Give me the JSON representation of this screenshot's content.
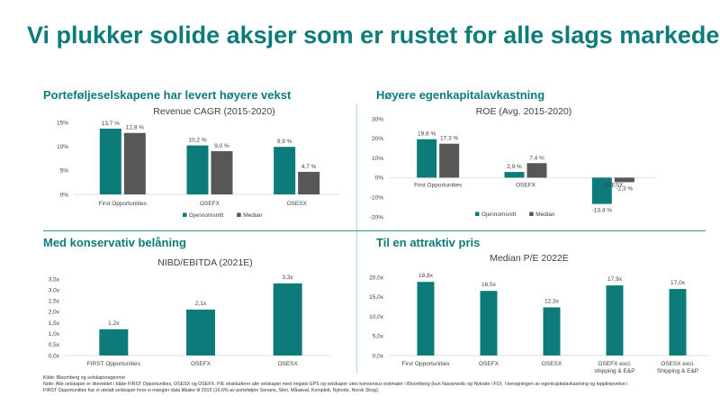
{
  "title": "Vi plukker solide aksjer som er rustet for alle slags markeder…",
  "sections": {
    "s1": "Porteføljeselskapene har levert høyere vekst",
    "s2": "Høyere egenkapitalavkastning",
    "s3": "Med konservativ belåning",
    "s4": "Til en attraktiv pris"
  },
  "colors": {
    "teal": "#0e7b7b",
    "grey": "#575757",
    "accent": "#0e7b7b"
  },
  "chart_data": [
    {
      "id": "revenue",
      "type": "bar",
      "title": "Revenue CAGR (2015-2020)",
      "categories": [
        "First Opportunities",
        "OSEFX",
        "OSESX"
      ],
      "series": [
        {
          "name": "Gjennomsnitt",
          "values": [
            13.7,
            10.2,
            9.9
          ],
          "labels": [
            "13,7 %",
            "10,2 %",
            "9,9 %"
          ]
        },
        {
          "name": "Median",
          "values": [
            12.8,
            9.0,
            4.7
          ],
          "labels": [
            "12,8 %",
            "9,0 %",
            "4,7 %"
          ]
        }
      ],
      "ylim": [
        0,
        15
      ],
      "yticks": [
        0,
        5,
        10,
        15
      ],
      "ytick_labels": [
        "0%",
        "5%",
        "10%",
        "15%"
      ],
      "legend": "bottom"
    },
    {
      "id": "roe",
      "type": "bar",
      "title": "ROE (Avg. 2015-2020)",
      "categories": [
        "First Opportunities",
        "OSEFX",
        "OSESX"
      ],
      "series": [
        {
          "name": "Gjennomsnitt",
          "values": [
            19.6,
            2.9,
            -13.4
          ],
          "labels": [
            "19,6 %",
            "2,9 %",
            "-13,4 %"
          ]
        },
        {
          "name": "Median",
          "values": [
            17.3,
            7.4,
            -2.3
          ],
          "labels": [
            "17,3 %",
            "7,4 %",
            "-2,3 %"
          ]
        }
      ],
      "ylim": [
        -20,
        30
      ],
      "yticks": [
        -20,
        -10,
        0,
        10,
        20,
        30
      ],
      "ytick_labels": [
        "-20%",
        "-10%",
        "0%",
        "10%",
        "20%",
        "30%"
      ],
      "legend": "bottom"
    },
    {
      "id": "nibd",
      "type": "bar",
      "title": "NIBD/EBITDA (2021E)",
      "categories": [
        "FIRST Opportunities",
        "OSEFX",
        "OSESX"
      ],
      "values": [
        1.2,
        2.1,
        3.3
      ],
      "labels": [
        "1,2x",
        "2,1x",
        "3,3x"
      ],
      "ylim": [
        0,
        3.5
      ],
      "yticks": [
        0,
        0.5,
        1,
        1.5,
        2,
        2.5,
        3,
        3.5
      ],
      "ytick_labels": [
        "0,0x",
        "0,5x",
        "1,0x",
        "1,5x",
        "2,0x",
        "2,5x",
        "3,0x",
        "3,5x"
      ]
    },
    {
      "id": "pe",
      "type": "bar",
      "title": "Median P/E 2022E",
      "categories": [
        "First Opportunities",
        "OSEFX",
        "OSESX",
        "OSEFX excl.|shipping & E&P",
        "OSESX excl.|Shipping & E&P"
      ],
      "values": [
        18.8,
        16.5,
        12.3,
        17.9,
        17.0
      ],
      "labels": [
        "18,8x",
        "16,5x",
        "12,3x",
        "17,9x",
        "17,0x"
      ],
      "ylim": [
        0,
        20
      ],
      "yticks": [
        0,
        5,
        10,
        15,
        20
      ],
      "ytick_labels": [
        "0,0x",
        "5,0x",
        "10,0x",
        "15,0x",
        "20,0x"
      ]
    }
  ],
  "footnote": {
    "line1": "Kilde: Bloomberg og selskapsrapporter",
    "line2": "Note: Alle selskaper er likevektet i både FIRST Opportunities, OSESX og OSEFX. P/E ekskluderer alle selskaper med negativ EPS og selskaper uten konsensus estimater i Bloomberg (kun Navamedic og Nykode i FO). I beregningen av egenkapitalavkastning og topplinjevekst i",
    "line3": "FIRST Opportunities har vi utelatt selskaper hvor vi mangler data tilbake til 2015 (16.6% av porteføljen Sonans, Sikri, Måsøval, Komplett, Nykode, Norsk Skog)."
  }
}
